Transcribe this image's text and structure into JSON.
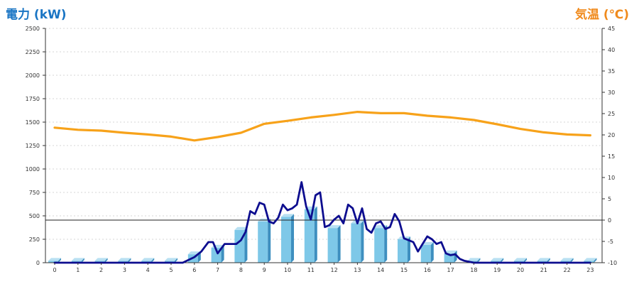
{
  "chart_data": {
    "type": "bar",
    "left_axis_title": "電力 (kW)",
    "right_axis_title": "気温 (℃)",
    "y_left": {
      "min": 0,
      "max": 2500,
      "step": 250
    },
    "y_right": {
      "min": -10,
      "max": 45,
      "step": 5
    },
    "x_ticks": [
      "0",
      "1",
      "2",
      "3",
      "4",
      "5",
      "6",
      "7",
      "8",
      "9",
      "10",
      "11",
      "12",
      "13",
      "14",
      "15",
      "16",
      "17",
      "18",
      "19",
      "20",
      "21",
      "22",
      "23"
    ],
    "grid": true,
    "reference_line": {
      "axis": "right",
      "value": 0
    },
    "colors": {
      "bar": "#7ec8e8",
      "bar_side": "#3e8fbf",
      "bar_top": "#b8e0f2",
      "power_line": "#0d0d8f",
      "temp_line": "#f7a21a",
      "left_title": "#1a75c4",
      "right_title": "#f08a1c"
    },
    "series": [
      {
        "kind": "bar",
        "axis": "left",
        "x": [
          0,
          1,
          2,
          3,
          4,
          5,
          6,
          7,
          8,
          9,
          10,
          11,
          12,
          13,
          14,
          15,
          16,
          17,
          18,
          19,
          20,
          21,
          22,
          23
        ],
        "values": [
          20,
          20,
          20,
          20,
          20,
          20,
          90,
          160,
          350,
          440,
          490,
          570,
          370,
          420,
          370,
          250,
          190,
          100,
          20,
          20,
          20,
          20,
          20,
          20
        ]
      },
      {
        "kind": "line",
        "axis": "left",
        "x": [
          0,
          1,
          2,
          3,
          4,
          5,
          5.5,
          6,
          6.3,
          6.6,
          6.8,
          7,
          7.3,
          7.6,
          7.8,
          8,
          8.2,
          8.4,
          8.6,
          8.8,
          9,
          9.2,
          9.4,
          9.6,
          9.8,
          10,
          10.2,
          10.4,
          10.6,
          10.8,
          11,
          11.2,
          11.4,
          11.6,
          11.8,
          12,
          12.2,
          12.4,
          12.6,
          12.8,
          13,
          13.2,
          13.4,
          13.6,
          13.8,
          14,
          14.2,
          14.4,
          14.6,
          14.8,
          15,
          15.2,
          15.4,
          15.6,
          15.8,
          16,
          16.2,
          16.4,
          16.6,
          16.8,
          17,
          17.2,
          17.4,
          17.6,
          18,
          19,
          20,
          21,
          22,
          23
        ],
        "values": [
          0,
          0,
          0,
          0,
          0,
          0,
          0,
          60,
          120,
          220,
          220,
          100,
          200,
          200,
          200,
          240,
          330,
          550,
          520,
          640,
          620,
          440,
          420,
          480,
          620,
          560,
          580,
          620,
          860,
          600,
          460,
          720,
          750,
          380,
          400,
          460,
          500,
          420,
          620,
          580,
          420,
          580,
          360,
          320,
          420,
          440,
          360,
          380,
          520,
          440,
          260,
          240,
          220,
          120,
          200,
          280,
          250,
          200,
          220,
          100,
          80,
          90,
          40,
          20,
          0,
          0,
          0,
          0,
          0,
          0
        ]
      },
      {
        "kind": "line",
        "axis": "right",
        "x": [
          0,
          1,
          2,
          3,
          4,
          5,
          6,
          7,
          8,
          9,
          10,
          11,
          12,
          13,
          14,
          15,
          16,
          17,
          18,
          19,
          20,
          21,
          22,
          23
        ],
        "values": [
          21.7,
          21.2,
          21,
          20.5,
          20.1,
          19.6,
          18.7,
          19.5,
          20.5,
          22.6,
          23.3,
          24.1,
          24.7,
          25.4,
          25.1,
          25.1,
          24.5,
          24.1,
          23.5,
          22.5,
          21.4,
          20.6,
          20.1,
          19.9
        ]
      }
    ]
  }
}
